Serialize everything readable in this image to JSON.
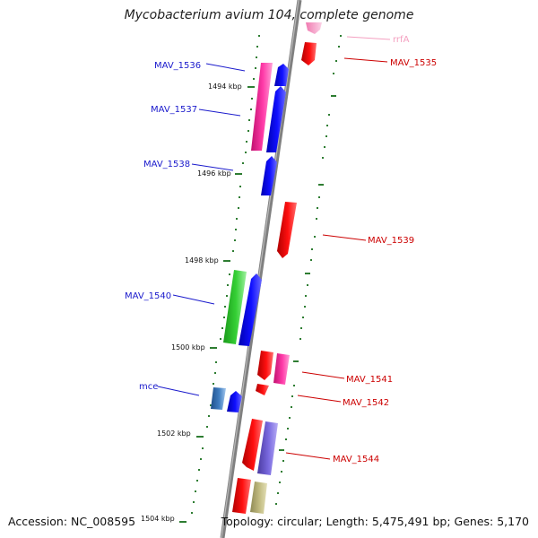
{
  "title": "Mycobacterium avium 104, complete genome",
  "footer": {
    "accession": "Accession: NC_008595",
    "topology": "Topology: circular; Length: 5,475,491 bp; Genes: 5,170"
  },
  "ticks": [
    "1494 kbp",
    "1496 kbp",
    "1498 kbp",
    "1500 kbp",
    "1502 kbp",
    "1504 kbp"
  ],
  "gene_labels": {
    "rrfA": "rrfA",
    "MAV_1535": "MAV_1535",
    "MAV_1536": "MAV_1536",
    "MAV_1537": "MAV_1537",
    "MAV_1538": "MAV_1538",
    "MAV_1539": "MAV_1539",
    "MAV_1540": "MAV_1540",
    "MAV_1541": "MAV_1541",
    "MAV_1542": "MAV_1542",
    "mce": "mce",
    "MAV_1544": "MAV_1544"
  },
  "colors": {
    "backbone": "#808080",
    "forward_label": "#1a1acc",
    "reverse_label": "#cc0000",
    "rrna_label": "#f4a0c0",
    "tick": "#2e7d32"
  }
}
